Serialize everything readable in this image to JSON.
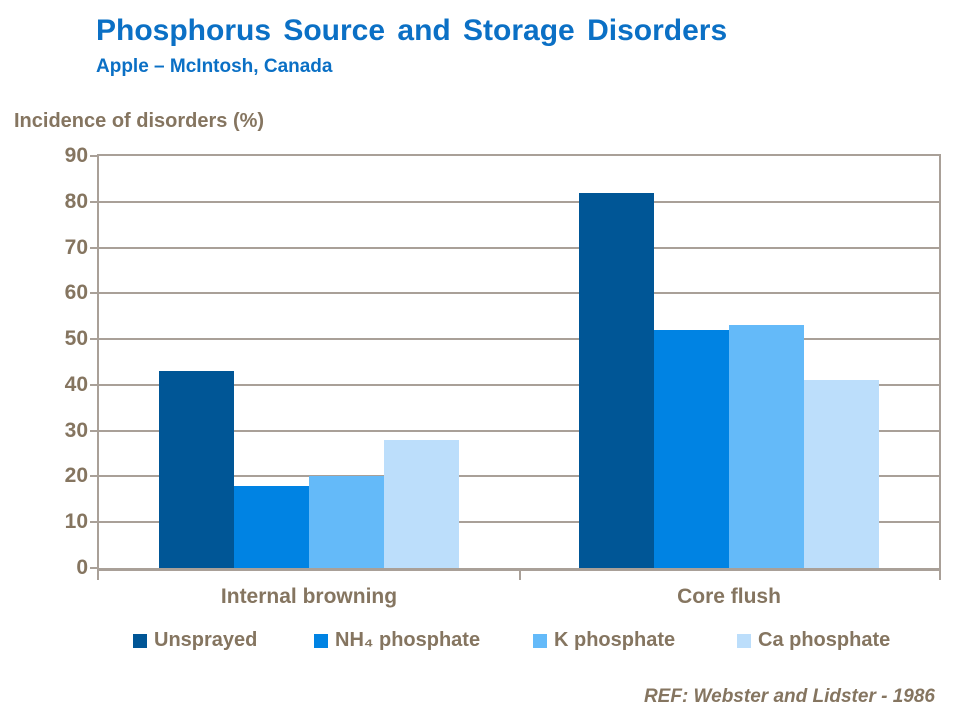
{
  "title": "Phosphorus Source and Storage Disorders",
  "subtitle": "Apple – McIntosh, Canada",
  "axis_title": "Incidence of disorders (%)",
  "reference": "REF: Webster and Lidster - 1986",
  "colors": {
    "title_blue": "#0b70c5",
    "text_brown": "#857560",
    "axis_gray": "#a9a098"
  },
  "chart_data": {
    "type": "bar",
    "title": "Phosphorus Source and Storage Disorders",
    "subtitle": "Apple – McIntosh, Canada",
    "ylabel": "Incidence of disorders (%)",
    "xlabel": "",
    "ylim": [
      0,
      90
    ],
    "ytick_step": 10,
    "grid": true,
    "legend_position": "bottom",
    "categories": [
      "Internal browning",
      "Core flush"
    ],
    "series": [
      {
        "name": "Unsprayed",
        "color": "#005696",
        "values": [
          43,
          82
        ]
      },
      {
        "name": "NH₄ phosphate",
        "color": "#0083e3",
        "values": [
          18,
          52
        ]
      },
      {
        "name": "K phosphate",
        "color": "#64baf9",
        "values": [
          20,
          53
        ]
      },
      {
        "name": "Ca phosphate",
        "color": "#bcdefb",
        "values": [
          28,
          41
        ]
      }
    ]
  }
}
